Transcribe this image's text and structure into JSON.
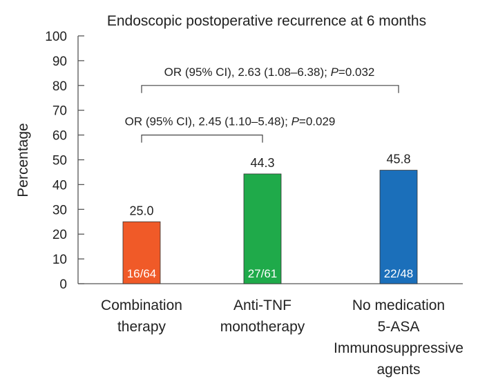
{
  "chart_data": {
    "type": "bar",
    "title": "Endoscopic postoperative recurrence at 6 months",
    "ylabel": "Percentage",
    "xlabel": "",
    "ylim": [
      0,
      100
    ],
    "yticks": [
      0,
      10,
      20,
      30,
      40,
      50,
      60,
      70,
      80,
      90,
      100
    ],
    "grid": false,
    "categories": [
      [
        "Combination",
        "therapy"
      ],
      [
        "Anti-TNF",
        "monotherapy"
      ],
      [
        "No medication",
        "5-ASA",
        "Immunosuppressive",
        "agents"
      ]
    ],
    "values": [
      25.0,
      44.3,
      45.8
    ],
    "value_labels": [
      "25.0",
      "44.3",
      "45.8"
    ],
    "ratio_labels": [
      "16/64",
      "27/61",
      "22/48"
    ],
    "colors": [
      "#f05a28",
      "#1faa4a",
      "#1b6fba"
    ],
    "annotations": [
      {
        "from": 0,
        "to": 2,
        "level": 80,
        "prefix": "OR (95% CI), 2.63 (1.08–6.38); ",
        "p_symbol": "P",
        "p_value": "=0.032"
      },
      {
        "from": 0,
        "to": 1,
        "level": 60,
        "prefix": "OR (95% CI), 2.45 (1.10–5.48); ",
        "p_symbol": "P",
        "p_value": "=0.029"
      }
    ]
  }
}
